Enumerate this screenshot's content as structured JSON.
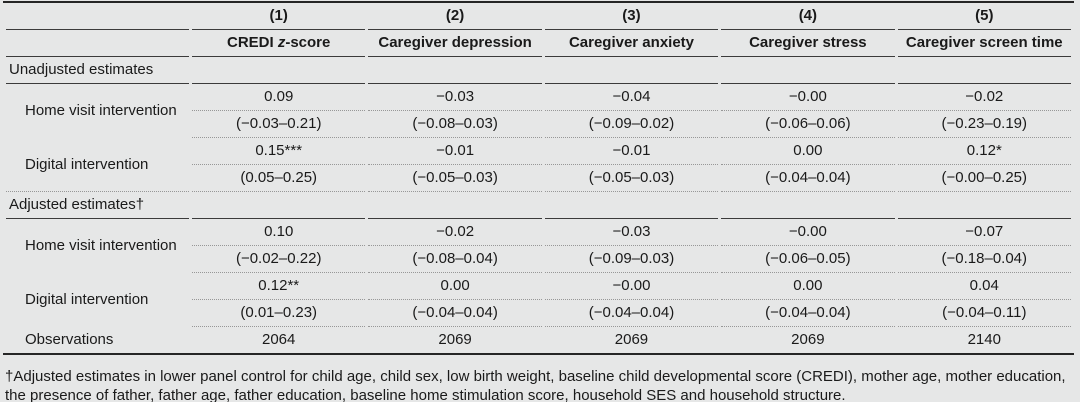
{
  "table": {
    "columns": [
      {
        "num": "(1)",
        "label_pre": "CREDI ",
        "label_em": "z",
        "label_post": "-score"
      },
      {
        "num": "(2)",
        "label": "Caregiver depression"
      },
      {
        "num": "(3)",
        "label": "Caregiver anxiety"
      },
      {
        "num": "(4)",
        "label": "Caregiver stress"
      },
      {
        "num": "(5)",
        "label": "Caregiver screen time"
      }
    ],
    "sections": [
      {
        "title": "Unadjusted estimates",
        "rows": [
          {
            "label": "Home visit intervention",
            "est": [
              "0.09",
              "−0.03",
              "−0.04",
              "−0.00",
              "−0.02"
            ],
            "ci": [
              "(−0.03–0.21)",
              "(−0.08–0.03)",
              "(−0.09–0.02)",
              "(−0.06–0.06)",
              "(−0.23–0.19)"
            ]
          },
          {
            "label": "Digital intervention",
            "est": [
              "0.15***",
              "−0.01",
              "−0.01",
              "0.00",
              "0.12*"
            ],
            "ci": [
              "(0.05–0.25)",
              "(−0.05–0.03)",
              "(−0.05–0.03)",
              "(−0.04–0.04)",
              "(−0.00–0.25)"
            ]
          }
        ]
      },
      {
        "title": "Adjusted estimates†",
        "rows": [
          {
            "label": "Home visit intervention",
            "est": [
              "0.10",
              "−0.02",
              "−0.03",
              "−0.00",
              "−0.07"
            ],
            "ci": [
              "(−0.02–0.22)",
              "(−0.08–0.04)",
              "(−0.09–0.03)",
              "(−0.06–0.05)",
              "(−0.18–0.04)"
            ]
          },
          {
            "label": "Digital intervention",
            "est": [
              "0.12**",
              "0.00",
              "−0.00",
              "0.00",
              "0.04"
            ],
            "ci": [
              "(0.01–0.23)",
              "(−0.04–0.04)",
              "(−0.04–0.04)",
              "(−0.04–0.04)",
              "(−0.04–0.11)"
            ]
          }
        ]
      }
    ],
    "observations": {
      "label": "Observations",
      "values": [
        "2064",
        "2069",
        "2069",
        "2069",
        "2140"
      ]
    }
  },
  "footnote": "†Adjusted estimates in lower panel control for child age, child sex, low birth weight, baseline child developmental score (CREDI), mother age, mother education, the presence of father, father age, father education, baseline home stimulation score, household SES and household structure."
}
